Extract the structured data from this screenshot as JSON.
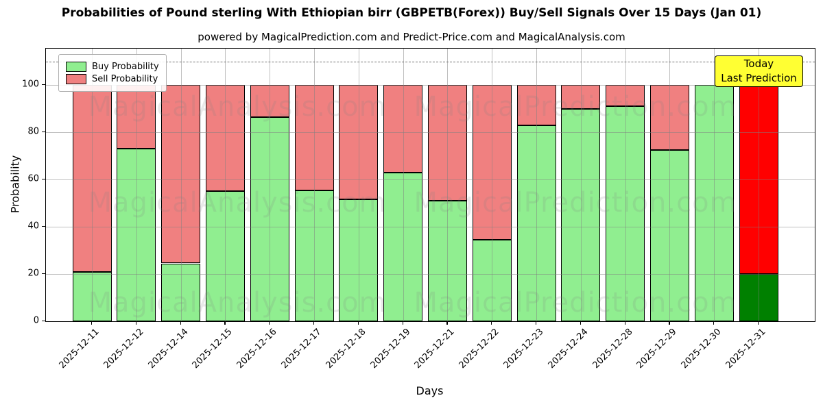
{
  "title": "Probabilities of Pound sterling With Ethiopian birr (GBPETB(Forex)) Buy/Sell Signals Over 15 Days (Jan 01)",
  "subtitle": "powered by MagicalPrediction.com and Predict-Price.com and MagicalAnalysis.com",
  "legend": {
    "buy_label": "Buy Probability",
    "sell_label": "Sell Probability"
  },
  "annotation": {
    "line1": "Today",
    "line2": "Last Prediction"
  },
  "axes": {
    "ylabel": "Probability",
    "xlabel": "Days",
    "yticks": [
      0,
      20,
      40,
      60,
      80,
      100
    ]
  },
  "watermarks": [
    "MagicalAnalysis.com",
    "MagicalPrediction.com"
  ],
  "colors": {
    "buy": "#90ee90",
    "sell": "#f08080",
    "today_buy": "#008000",
    "today_sell": "#ff0000",
    "annotation_bg": "#ffff33",
    "grid": "#808080",
    "dashed_line": "#6e6e6e"
  },
  "chart_data": {
    "type": "bar",
    "stacked": true,
    "title": "Probabilities of Pound sterling With Ethiopian birr (GBPETB(Forex)) Buy/Sell Signals Over 15 Days (Jan 01)",
    "xlabel": "Days",
    "ylabel": "Probability",
    "ylim": [
      0,
      115.4
    ],
    "grid": true,
    "legend_position": "upper left",
    "dashed_line_y": 110,
    "categories": [
      "2025-12-11",
      "2025-12-12",
      "2025-12-14",
      "2025-12-15",
      "2025-12-16",
      "2025-12-17",
      "2025-12-18",
      "2025-12-19",
      "2025-12-21",
      "2025-12-22",
      "2025-12-23",
      "2025-12-24",
      "2025-12-28",
      "2025-12-29",
      "2025-12-30",
      "2025-12-31"
    ],
    "series": [
      {
        "name": "Buy Probability",
        "values": [
          21,
          73,
          24.5,
          55,
          86.5,
          55.5,
          51.5,
          63,
          51,
          34.5,
          83,
          90,
          91,
          72.5,
          100,
          20
        ]
      },
      {
        "name": "Sell Probability",
        "values": [
          79,
          27,
          75.5,
          45,
          13.5,
          44.5,
          48.5,
          37,
          49,
          65.5,
          17,
          10,
          9,
          27.5,
          0,
          80
        ]
      }
    ],
    "today_index": 15
  }
}
